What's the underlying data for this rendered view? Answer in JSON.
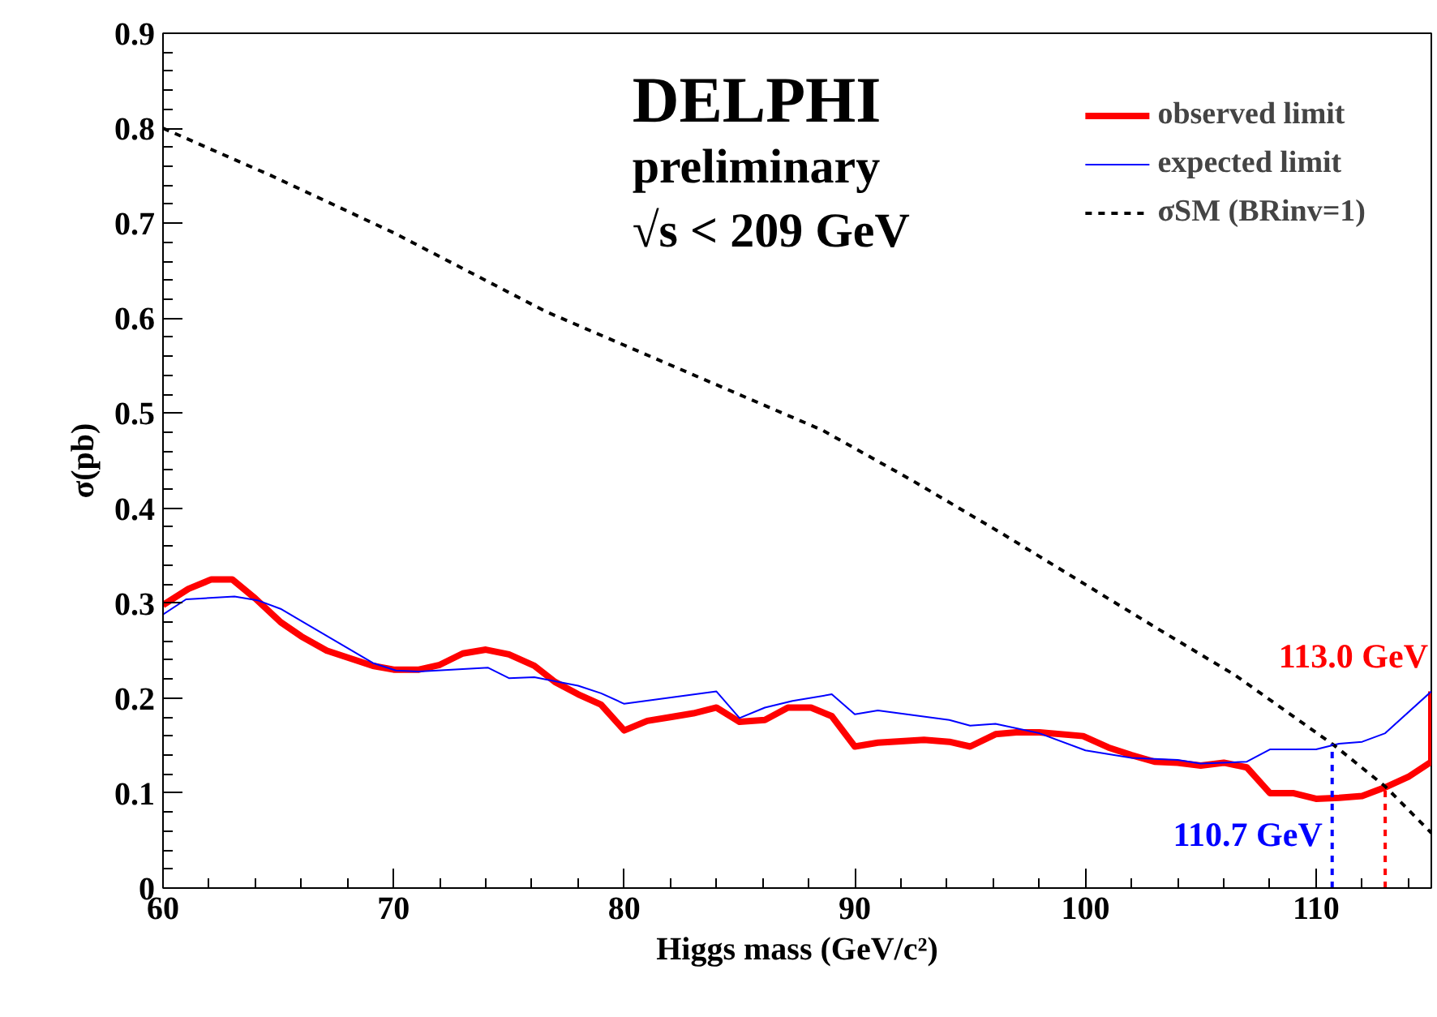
{
  "chart_data": {
    "type": "line",
    "title": "DELPHI",
    "subtitle": "preliminary",
    "xlabel": "Higgs mass (GeV/c²)",
    "ylabel": "σ(pb)",
    "annotations": [
      "√s < 209 GeV"
    ],
    "xlim": [
      60,
      115
    ],
    "ylim": [
      0,
      0.9
    ],
    "xticks": [
      60,
      70,
      80,
      90,
      100,
      110
    ],
    "yticks": [
      0,
      0.1,
      0.2,
      0.3,
      0.4,
      0.5,
      0.6,
      0.7,
      0.8,
      0.9
    ],
    "grid": false,
    "legend": "top right",
    "marker": "none",
    "series": [
      {
        "name": "observed limit",
        "color": "#ff0000",
        "line_style": "solid",
        "x": [
          60,
          61.1,
          62.1,
          63.0,
          64.0,
          65.1,
          66.0,
          67.1,
          69.1,
          70.0,
          71.1,
          72.0,
          73.0,
          74.0,
          75.0,
          76.1,
          77.0,
          78.0,
          79.0,
          80.0,
          81.0,
          82.0,
          83.0,
          84.0,
          85.0,
          86.1,
          87.1,
          88.1,
          89.0,
          90.0,
          91.0,
          93.0,
          94.1,
          95.0,
          96.1,
          97.0,
          98.0,
          99.9,
          101.0,
          102.0,
          103.0,
          104.0,
          105.0,
          106.0,
          107.0,
          108.0,
          109.0,
          110.0,
          111.0,
          112.0,
          113.0,
          114.0,
          115.0,
          115.0
        ],
        "values": [
          0.298,
          0.315,
          0.325,
          0.325,
          0.305,
          0.28,
          0.265,
          0.25,
          0.234,
          0.23,
          0.23,
          0.235,
          0.247,
          0.251,
          0.246,
          0.234,
          0.217,
          0.204,
          0.193,
          0.166,
          0.176,
          0.18,
          0.184,
          0.19,
          0.175,
          0.177,
          0.19,
          0.19,
          0.181,
          0.149,
          0.153,
          0.156,
          0.154,
          0.149,
          0.162,
          0.164,
          0.164,
          0.16,
          0.148,
          0.14,
          0.133,
          0.132,
          0.129,
          0.132,
          0.127,
          0.1,
          0.1,
          0.094,
          0.095,
          0.097,
          0.106,
          0.117,
          0.133,
          0.207
        ]
      },
      {
        "name": "expected limit",
        "color": "#0000ff",
        "line_style": "solid",
        "x": [
          60,
          61.0,
          63.1,
          64.1,
          65.1,
          69.1,
          70.1,
          71.1,
          74.1,
          75.0,
          76.1,
          78.0,
          79.0,
          80.0,
          84.0,
          85.0,
          86.1,
          87.3,
          89.0,
          90.0,
          91.0,
          94.1,
          95.0,
          96.1,
          98.0,
          100.0,
          102.0,
          104.0,
          105.0,
          107.0,
          108.0,
          110.0,
          111.0,
          112.0,
          113.0,
          115.0
        ],
        "values": [
          0.288,
          0.304,
          0.307,
          0.303,
          0.294,
          0.237,
          0.229,
          0.228,
          0.232,
          0.221,
          0.222,
          0.213,
          0.205,
          0.194,
          0.207,
          0.179,
          0.19,
          0.197,
          0.204,
          0.183,
          0.187,
          0.177,
          0.171,
          0.173,
          0.163,
          0.145,
          0.137,
          0.135,
          0.131,
          0.133,
          0.146,
          0.146,
          0.152,
          0.154,
          0.163,
          0.207
        ]
      },
      {
        "name": "σSM (BRinv=1)",
        "color": "#000000",
        "line_style": "dashed",
        "x": [
          60,
          64.7,
          70,
          76.6,
          88.6,
          92.5,
          96.4,
          103.0,
          106.5,
          110.8,
          113.0,
          115.0
        ],
        "values": [
          0.8,
          0.75,
          0.69,
          0.607,
          0.482,
          0.429,
          0.373,
          0.275,
          0.224,
          0.15,
          0.107,
          0.058
        ]
      }
    ],
    "ref_lines": [
      {
        "axis": "x",
        "value": 110.7,
        "label": "110.7 GeV",
        "color": "#0000ff",
        "line_style": "dashed"
      },
      {
        "axis": "x",
        "value": 113.0,
        "label": "113.0 GeV",
        "color": "#ff0000",
        "line_style": "dashed"
      }
    ]
  }
}
